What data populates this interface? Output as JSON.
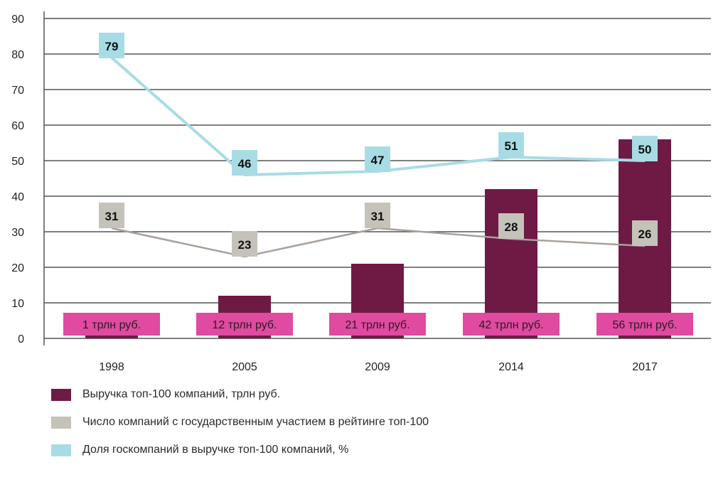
{
  "chart_data": {
    "type": "bar",
    "categories": [
      "1998",
      "2005",
      "2009",
      "2014",
      "2017"
    ],
    "ylim": [
      0,
      90
    ],
    "yticks": [
      "0",
      "10",
      "20",
      "30",
      "40",
      "50",
      "60",
      "70",
      "80",
      "90"
    ],
    "grid": true,
    "series": [
      {
        "name": "Выручка топ-100 компаний, трлн руб.",
        "type": "bar",
        "color": "#6e1a45",
        "values": [
          1,
          12,
          21,
          42,
          56
        ],
        "labels": [
          "1 трлн руб.",
          "12 трлн руб.",
          "21 трлн руб.",
          "42 трлн руб.",
          "56 трлн руб."
        ]
      },
      {
        "name": "Число компаний с государственным участием в рейтинге топ-100",
        "type": "line",
        "color": "#a8a09a",
        "label_color": "#c5c2ba",
        "values": [
          31,
          23,
          31,
          28,
          26
        ]
      },
      {
        "name": "Доля госкомпаний в выручке топ-100 компаний, %",
        "type": "line",
        "color": "#a8dce4",
        "label_color": "#a8dce4",
        "values": [
          79,
          46,
          47,
          51,
          50
        ]
      }
    ],
    "bar_label_color": "#e04aa0",
    "legend_position": "bottom-left"
  }
}
